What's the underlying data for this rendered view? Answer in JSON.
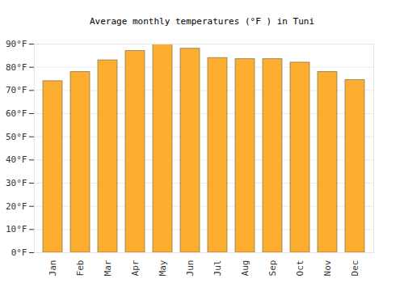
{
  "chart_data": {
    "type": "bar",
    "title": "Average monthly temperatures (°F ) in Tuni",
    "categories": [
      "Jan",
      "Feb",
      "Mar",
      "Apr",
      "May",
      "Jun",
      "Jul",
      "Aug",
      "Sep",
      "Oct",
      "Nov",
      "Dec"
    ],
    "values": [
      74,
      78,
      83,
      87,
      90,
      88,
      84,
      83.5,
      83.5,
      82,
      78,
      74.5
    ],
    "color": "#fdae2f",
    "ylim": [
      0,
      90
    ],
    "yticks": [
      {
        "value": 0,
        "label": "0°F"
      },
      {
        "value": 10,
        "label": "10°F"
      },
      {
        "value": 20,
        "label": "20°F"
      },
      {
        "value": 30,
        "label": "30°F"
      },
      {
        "value": 40,
        "label": "40°F"
      },
      {
        "value": 50,
        "label": "50°F"
      },
      {
        "value": 60,
        "label": "60°F"
      },
      {
        "value": 70,
        "label": "70°F"
      },
      {
        "value": 80,
        "label": "80°F"
      },
      {
        "value": 90,
        "label": "90°F"
      }
    ],
    "grid": true
  }
}
